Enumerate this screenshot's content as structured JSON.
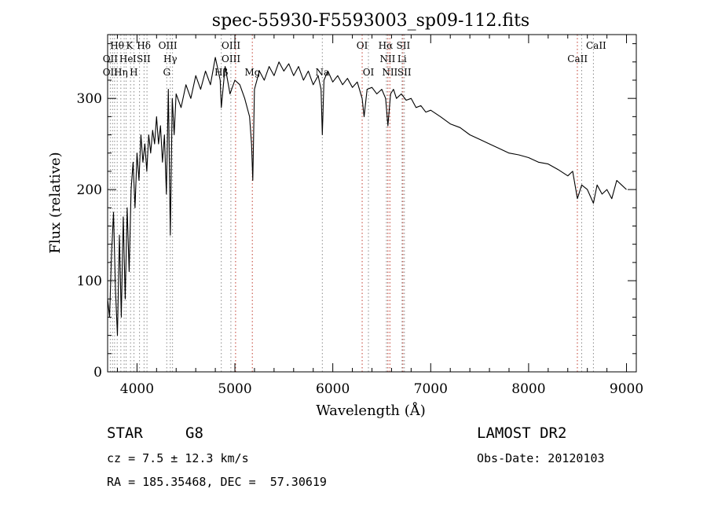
{
  "chart_data": {
    "type": "line",
    "title": "spec-55930-F5593003_sp09-112.fits",
    "xlabel": "Wavelength (Å)",
    "ylabel": "Flux (relative)",
    "xlim": [
      3700,
      9100
    ],
    "ylim": [
      0,
      370
    ],
    "xticks": [
      4000,
      5000,
      6000,
      7000,
      8000,
      9000
    ],
    "yticks": [
      0,
      100,
      200,
      300
    ],
    "grid": false,
    "line_color": "#000000",
    "marker_color": "#c0392b",
    "series": [
      {
        "x": [
          3700,
          3720,
          3740,
          3760,
          3780,
          3800,
          3820,
          3840,
          3860,
          3880,
          3900,
          3920,
          3940,
          3960,
          3980,
          4000,
          4020,
          4040,
          4060,
          4080,
          4100,
          4120,
          4140,
          4160,
          4180,
          4200,
          4220,
          4240,
          4260,
          4280,
          4300,
          4320,
          4340,
          4360,
          4380,
          4400,
          4450,
          4500,
          4550,
          4600,
          4650,
          4700,
          4750,
          4800,
          4850,
          4861,
          4900,
          4950,
          5000,
          5050,
          5100,
          5150,
          5170,
          5183,
          5200,
          5250,
          5300,
          5350,
          5400,
          5450,
          5500,
          5550,
          5600,
          5650,
          5700,
          5750,
          5800,
          5850,
          5880,
          5893,
          5910,
          5950,
          6000,
          6050,
          6100,
          6150,
          6200,
          6250,
          6300,
          6320,
          6350,
          6400,
          6450,
          6500,
          6540,
          6563,
          6590,
          6620,
          6650,
          6700,
          6750,
          6800,
          6850,
          6900,
          6950,
          7000,
          7100,
          7200,
          7300,
          7400,
          7500,
          7600,
          7700,
          7800,
          7900,
          8000,
          8100,
          8200,
          8300,
          8400,
          8450,
          8498,
          8542,
          8600,
          8662,
          8700,
          8750,
          8800,
          8850,
          8900,
          8950,
          9000
        ],
        "y": [
          80,
          60,
          130,
          175,
          90,
          40,
          150,
          60,
          170,
          80,
          180,
          110,
          200,
          230,
          180,
          240,
          210,
          260,
          230,
          250,
          220,
          260,
          240,
          265,
          250,
          280,
          250,
          270,
          230,
          260,
          195,
          310,
          150,
          300,
          260,
          305,
          290,
          315,
          300,
          325,
          310,
          330,
          315,
          345,
          320,
          290,
          335,
          305,
          320,
          315,
          300,
          280,
          250,
          210,
          310,
          330,
          320,
          335,
          325,
          340,
          330,
          338,
          325,
          335,
          320,
          330,
          315,
          325,
          310,
          260,
          320,
          330,
          318,
          325,
          315,
          322,
          312,
          318,
          300,
          280,
          310,
          312,
          305,
          310,
          300,
          270,
          305,
          310,
          300,
          305,
          298,
          300,
          290,
          292,
          285,
          287,
          280,
          272,
          268,
          260,
          255,
          250,
          245,
          240,
          238,
          235,
          230,
          228,
          222,
          215,
          220,
          190,
          205,
          200,
          185,
          205,
          195,
          200,
          190,
          210,
          205,
          200
        ]
      }
    ],
    "line_markers": [
      {
        "wl": 3727,
        "color": "gray"
      },
      {
        "wl": 3750,
        "color": "gray"
      },
      {
        "wl": 3771,
        "color": "gray"
      },
      {
        "wl": 3798,
        "color": "gray"
      },
      {
        "wl": 3835,
        "color": "gray"
      },
      {
        "wl": 3869,
        "color": "gray"
      },
      {
        "wl": 3889,
        "color": "gray"
      },
      {
        "wl": 3934,
        "color": "gray"
      },
      {
        "wl": 3969,
        "color": "gray"
      },
      {
        "wl": 4026,
        "color": "gray"
      },
      {
        "wl": 4072,
        "color": "gray"
      },
      {
        "wl": 4102,
        "color": "gray"
      },
      {
        "wl": 4304,
        "color": "gray"
      },
      {
        "wl": 4340,
        "color": "gray"
      },
      {
        "wl": 4363,
        "color": "gray"
      },
      {
        "wl": 4861,
        "color": "gray"
      },
      {
        "wl": 4959,
        "color": "gray"
      },
      {
        "wl": 5007,
        "color": "red"
      },
      {
        "wl": 5178,
        "color": "red"
      },
      {
        "wl": 5893,
        "color": "gray"
      },
      {
        "wl": 6300,
        "color": "red"
      },
      {
        "wl": 6364,
        "color": "gray"
      },
      {
        "wl": 6548,
        "color": "gray"
      },
      {
        "wl": 6563,
        "color": "red"
      },
      {
        "wl": 6583,
        "color": "red"
      },
      {
        "wl": 6707,
        "color": "gray"
      },
      {
        "wl": 6716,
        "color": "red"
      },
      {
        "wl": 6731,
        "color": "gray"
      },
      {
        "wl": 8498,
        "color": "red"
      },
      {
        "wl": 8542,
        "color": "gray"
      },
      {
        "wl": 8662,
        "color": "gray"
      }
    ],
    "line_labels": [
      {
        "text": "Hθ",
        "wl": 3797,
        "row": 0
      },
      {
        "text": "K",
        "wl": 3925,
        "row": 0
      },
      {
        "text": "Hδ",
        "wl": 4070,
        "row": 0
      },
      {
        "text": "OIII",
        "wl": 4315,
        "row": 0
      },
      {
        "text": "OIII",
        "wl": 4960,
        "row": 0
      },
      {
        "text": "OI",
        "wl": 6300,
        "row": 0
      },
      {
        "text": "Hα",
        "wl": 6540,
        "row": 0
      },
      {
        "text": "SII",
        "wl": 6720,
        "row": 0
      },
      {
        "text": "CaII",
        "wl": 8690,
        "row": 0
      },
      {
        "text": "OII",
        "wl": 3727,
        "row": 1
      },
      {
        "text": "He",
        "wl": 3890,
        "row": 1
      },
      {
        "text": "I",
        "wl": 3975,
        "row": 1
      },
      {
        "text": "SII",
        "wl": 4068,
        "row": 1
      },
      {
        "text": "Hγ",
        "wl": 4340,
        "row": 1
      },
      {
        "text": "OIII",
        "wl": 4960,
        "row": 1
      },
      {
        "text": "NII",
        "wl": 6560,
        "row": 1
      },
      {
        "text": "Li",
        "wl": 6707,
        "row": 1
      },
      {
        "text": "CaII",
        "wl": 8500,
        "row": 1
      },
      {
        "text": "OII",
        "wl": 3727,
        "row": 2
      },
      {
        "text": "Hη",
        "wl": 3835,
        "row": 2
      },
      {
        "text": "H",
        "wl": 3968,
        "row": 2
      },
      {
        "text": "G",
        "wl": 4304,
        "row": 2
      },
      {
        "text": "Hβ",
        "wl": 4861,
        "row": 2
      },
      {
        "text": "Mg",
        "wl": 5180,
        "row": 2
      },
      {
        "text": "Na",
        "wl": 5893,
        "row": 2
      },
      {
        "text": "OI",
        "wl": 6364,
        "row": 2
      },
      {
        "text": "NII",
        "wl": 6583,
        "row": 2
      },
      {
        "text": "SII",
        "wl": 6731,
        "row": 2
      }
    ]
  },
  "info": {
    "object_class": "STAR",
    "subclass": "G8",
    "survey": "LAMOST DR2",
    "cz": "cz = 7.5 ± 12.3 km/s",
    "obs_date": "Obs-Date: 20120103",
    "coords": "RA = 185.35468, DEC =  57.30619"
  }
}
